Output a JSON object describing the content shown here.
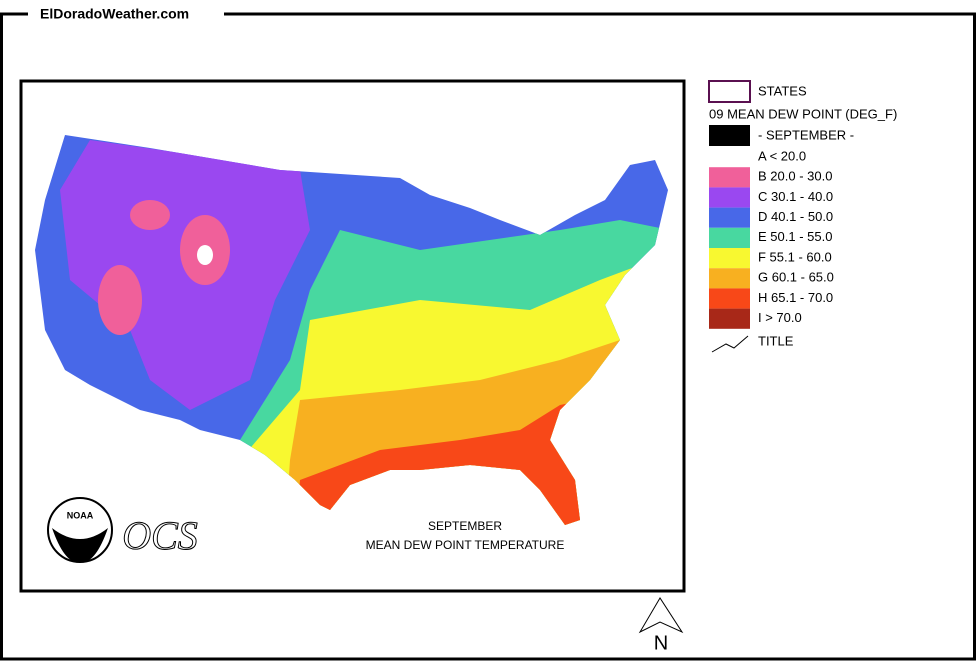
{
  "header": {
    "site": "ElDoradoWeather.com"
  },
  "legend": {
    "states": "STATES",
    "variable": "09 MEAN DEW POINT (DEG_F)",
    "period": "- SEPTEMBER -",
    "period_color": "#000000",
    "items": [
      {
        "label": "A < 20.0",
        "color": "#ffffff"
      },
      {
        "label": "B 20.0 - 30.0",
        "color": "#f0609a"
      },
      {
        "label": "C 30.1 - 40.0",
        "color": "#9a48f0"
      },
      {
        "label": "D 40.1 - 50.0",
        "color": "#4868e8"
      },
      {
        "label": "E 50.1 - 55.0",
        "color": "#48d8a0"
      },
      {
        "label": "F 55.1 - 60.0",
        "color": "#f8f830"
      },
      {
        "label": "G 60.1 - 65.0",
        "color": "#f8b020"
      },
      {
        "label": "H 65.1 - 70.0",
        "color": "#f84818"
      },
      {
        "label": "I > 70.0",
        "color": "#a82818"
      }
    ],
    "title_item": "TITLE"
  },
  "map": {
    "title": "SEPTEMBER",
    "subtitle": "MEAN DEW POINT TEMPERATURE",
    "logo": "NOAA",
    "logo_text": "OCS"
  },
  "compass": "N"
}
